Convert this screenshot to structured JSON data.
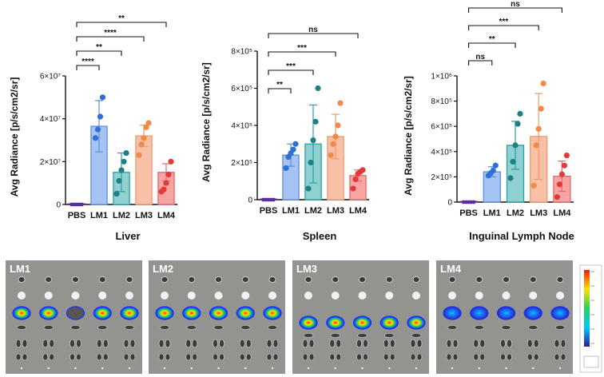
{
  "chart_data": [
    {
      "type": "bar",
      "title": "Liver",
      "ylabel": "Avg Radiance [p/s/cm2/sr]",
      "categories": [
        "PBS",
        "LM1",
        "LM2",
        "LM3",
        "LM4"
      ],
      "ylim": [
        0,
        60000000
      ],
      "yticks": [
        {
          "v": 0,
          "label": "0"
        },
        {
          "v": 20000000,
          "label": "2×10⁷"
        },
        {
          "v": 40000000,
          "label": "4×10⁷"
        },
        {
          "v": 60000000,
          "label": "6×10⁷"
        }
      ],
      "means": [
        200000,
        36500000,
        15000000,
        32000000,
        15000000
      ],
      "errors": [
        0,
        12000000,
        9000000,
        5000000,
        4000000
      ],
      "points": [
        [
          0,
          0,
          0,
          0,
          0
        ],
        [
          31000000,
          35000000,
          41000000,
          50000000
        ],
        [
          5000000,
          11000000,
          16000000,
          20000000,
          24000000
        ],
        [
          23000000,
          28000000,
          31000000,
          36000000,
          38000000
        ],
        [
          6000000,
          7000000,
          10000000,
          14000000,
          20000000
        ]
      ],
      "comparisons": [
        {
          "from": 0,
          "to": 1,
          "label": "****"
        },
        {
          "from": 0,
          "to": 2,
          "label": "**"
        },
        {
          "from": 0,
          "to": 3,
          "label": "****"
        },
        {
          "from": 0,
          "to": 4,
          "label": "**"
        }
      ]
    },
    {
      "type": "bar",
      "title": "Spleen",
      "ylabel": "Avg Radiance [p/s/cm2/sr]",
      "categories": [
        "PBS",
        "LM1",
        "LM2",
        "LM3",
        "LM4"
      ],
      "ylim": [
        0,
        800000
      ],
      "yticks": [
        {
          "v": 0,
          "label": "0"
        },
        {
          "v": 200000,
          "label": "2×10⁵"
        },
        {
          "v": 400000,
          "label": "4×10⁵"
        },
        {
          "v": 600000,
          "label": "6×10⁵"
        },
        {
          "v": 800000,
          "label": "8×10⁵"
        }
      ],
      "means": [
        3000,
        240000,
        300000,
        340000,
        130000
      ],
      "errors": [
        0,
        60000,
        210000,
        120000,
        30000
      ],
      "points": [
        [
          0,
          0,
          0,
          0,
          0
        ],
        [
          170000,
          230000,
          250000,
          270000,
          300000
        ],
        [
          60000,
          200000,
          320000,
          420000,
          600000
        ],
        [
          240000,
          300000,
          340000,
          400000,
          520000
        ],
        [
          60000,
          110000,
          140000,
          150000,
          160000
        ]
      ],
      "comparisons": [
        {
          "from": 0,
          "to": 1,
          "label": "**"
        },
        {
          "from": 0,
          "to": 2,
          "label": "***"
        },
        {
          "from": 0,
          "to": 3,
          "label": "***"
        },
        {
          "from": 0,
          "to": 4,
          "label": "ns"
        }
      ]
    },
    {
      "type": "bar",
      "title": "Inguinal Lymph Node",
      "ylabel": "Avg Radiance [p/s/cm2/sr]",
      "categories": [
        "PBS",
        "LM1",
        "LM2",
        "LM3",
        "LM4"
      ],
      "ylim": [
        0,
        1000000
      ],
      "yticks": [
        {
          "v": 0,
          "label": "0"
        },
        {
          "v": 200000,
          "label": "2×10⁵"
        },
        {
          "v": 400000,
          "label": "4×10⁵"
        },
        {
          "v": 600000,
          "label": "6×10⁵"
        },
        {
          "v": 800000,
          "label": "8×10⁵"
        },
        {
          "v": 1000000,
          "label": "1×10⁶"
        }
      ],
      "means": [
        5000,
        240000,
        450000,
        520000,
        205000
      ],
      "errors": [
        0,
        40000,
        190000,
        340000,
        120000
      ],
      "points": [
        [
          0,
          0,
          0,
          0,
          0
        ],
        [
          210000,
          230000,
          250000,
          290000
        ],
        [
          190000,
          320000,
          450000,
          620000,
          700000
        ],
        [
          130000,
          450000,
          580000,
          740000,
          940000
        ],
        [
          40000,
          140000,
          220000,
          290000,
          370000
        ]
      ],
      "comparisons": [
        {
          "from": 0,
          "to": 1,
          "label": "ns"
        },
        {
          "from": 0,
          "to": 2,
          "label": "**"
        },
        {
          "from": 0,
          "to": 3,
          "label": "***"
        },
        {
          "from": 0,
          "to": 4,
          "label": "ns"
        }
      ]
    }
  ],
  "colors": {
    "bars": [
      "#a9a2d6",
      "#a6c4f3",
      "#8fd0d0",
      "#f8c0a6",
      "#f6a4a4"
    ],
    "dots": [
      "#5a2d9c",
      "#2f6fd8",
      "#1f7f86",
      "#f08a4b",
      "#e23a3a"
    ],
    "edges": [
      "#5a2d9c",
      "#5b8ee0",
      "#2aa0a6",
      "#f19a6a",
      "#e66a6a"
    ]
  },
  "image_labels": [
    "LM1",
    "LM2",
    "LM3",
    "LM4"
  ]
}
